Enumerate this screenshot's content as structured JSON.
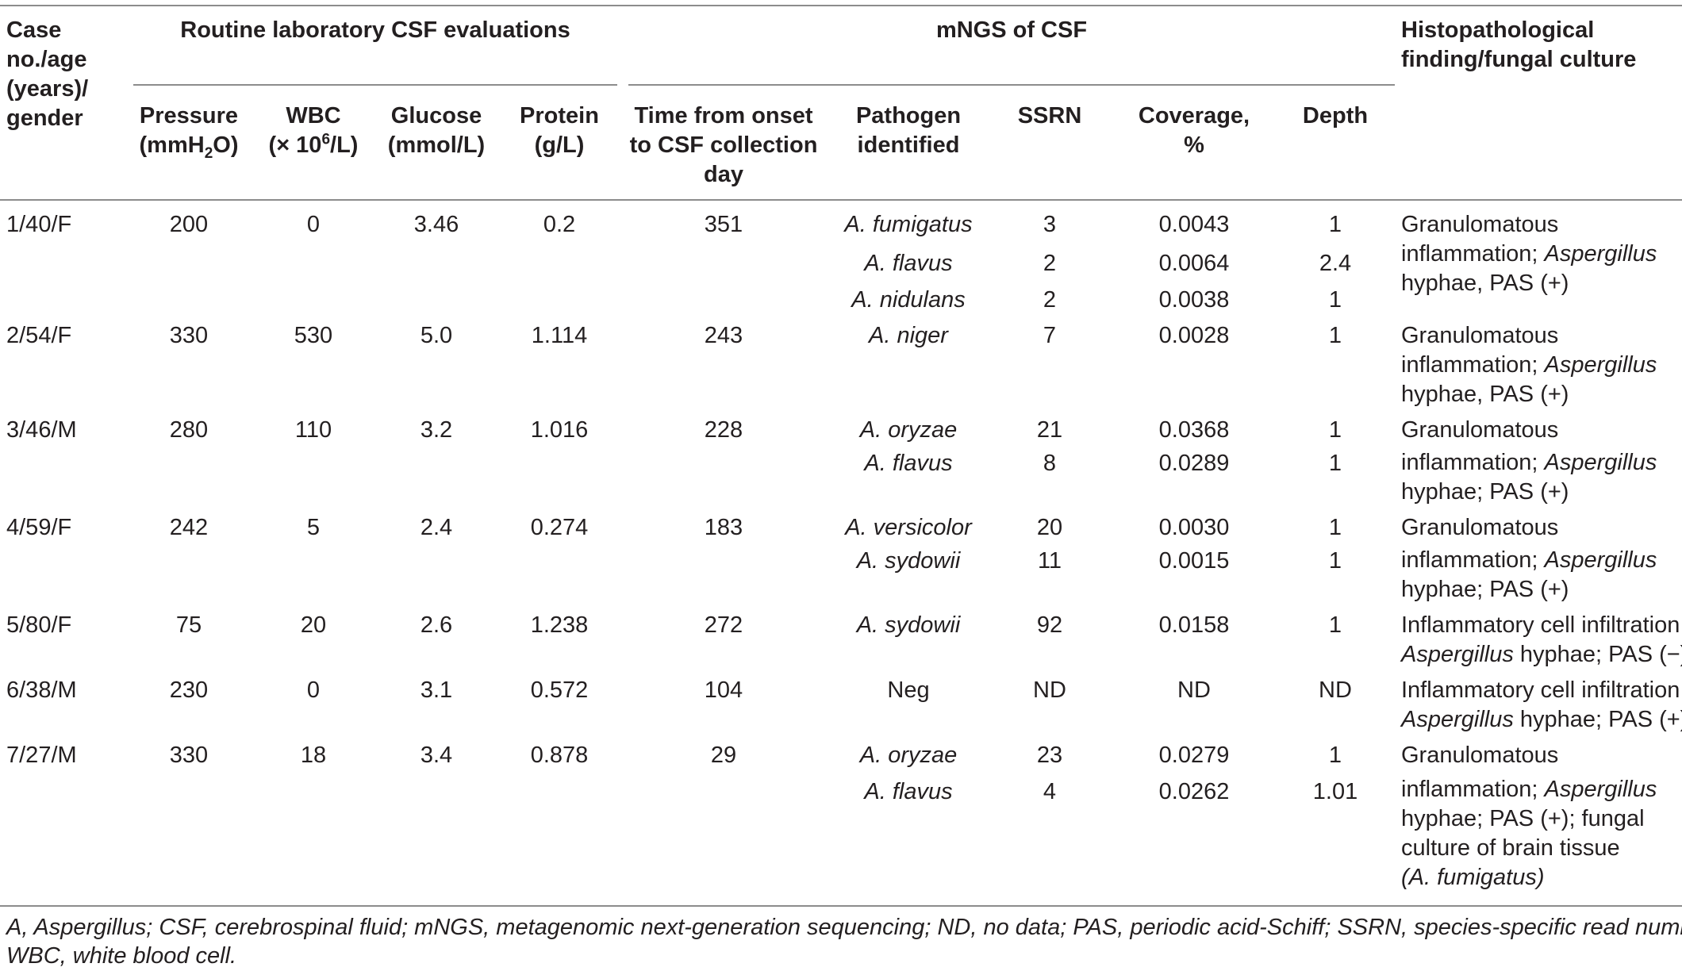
{
  "headers": {
    "case": [
      "Case",
      "no./age",
      "(years)/",
      "gender"
    ],
    "group_routine": "Routine laboratory CSF evaluations",
    "group_mngs": "mNGS of CSF",
    "histo": [
      "Histopathological",
      "finding/fungal culture"
    ],
    "pressure": {
      "l1": "Pressure",
      "l2a": "(mmH",
      "l2sub": "2",
      "l2b": "O)"
    },
    "wbc": {
      "l1": "WBC",
      "l2a": "(× 10",
      "l2sup": "6",
      "l2b": "/L)"
    },
    "glucose": [
      "Glucose",
      "(mmol/L)"
    ],
    "protein": [
      "Protein",
      "(g/L)"
    ],
    "time": [
      "Time from onset",
      "to CSF collection",
      "day"
    ],
    "pathogen": [
      "Pathogen",
      "identified"
    ],
    "ssrn": "SSRN",
    "coverage": [
      "Coverage,",
      "%"
    ],
    "depth": "Depth"
  },
  "rows": [
    {
      "case": "1/40/F",
      "pressure": "200",
      "wbc": "0",
      "glucose": "3.46",
      "protein": "0.2",
      "time": "351",
      "pathogens": [
        {
          "name": "A. fumigatus",
          "ssrn": "3",
          "coverage": "0.0043",
          "depth": "1"
        },
        {
          "name": "A. flavus",
          "ssrn": "2",
          "coverage": "0.0064",
          "depth": "2.4"
        },
        {
          "name": "A. nidulans",
          "ssrn": "2",
          "coverage": "0.0038",
          "depth": "1"
        }
      ],
      "histo": [
        "Granulomatous",
        "inflammation; ",
        "Aspergillus",
        "hyphae, PAS (+)"
      ]
    },
    {
      "case": "2/54/F",
      "pressure": "330",
      "wbc": "530",
      "glucose": "5.0",
      "protein": "1.114",
      "time": "243",
      "pathogens": [
        {
          "name": "A. niger",
          "ssrn": "7",
          "coverage": "0.0028",
          "depth": "1"
        }
      ],
      "histo": [
        "Granulomatous",
        "inflammation; ",
        "Aspergillus",
        "hyphae, PAS (+)"
      ]
    },
    {
      "case": "3/46/M",
      "pressure": "280",
      "wbc": "110",
      "glucose": "3.2",
      "protein": "1.016",
      "time": "228",
      "pathogens": [
        {
          "name": "A. oryzae",
          "ssrn": "21",
          "coverage": "0.0368",
          "depth": "1"
        },
        {
          "name": "A. flavus",
          "ssrn": "8",
          "coverage": "0.0289",
          "depth": "1"
        }
      ],
      "histo": [
        "Granulomatous",
        "inflammation; ",
        "Aspergillus",
        "hyphae; PAS (+)"
      ]
    },
    {
      "case": "4/59/F",
      "pressure": "242",
      "wbc": "5",
      "glucose": "2.4",
      "protein": "0.274",
      "time": "183",
      "pathogens": [
        {
          "name": "A. versicolor",
          "ssrn": "20",
          "coverage": "0.0030",
          "depth": "1"
        },
        {
          "name": "A. sydowii",
          "ssrn": "11",
          "coverage": "0.0015",
          "depth": "1"
        }
      ],
      "histo": [
        "Granulomatous",
        "inflammation; ",
        "Aspergillus",
        "hyphae; PAS (+)"
      ]
    },
    {
      "case": "5/80/F",
      "pressure": "75",
      "wbc": "20",
      "glucose": "2.6",
      "protein": "1.238",
      "time": "272",
      "pathogens": [
        {
          "name": "A. sydowii",
          "ssrn": "92",
          "coverage": "0.0158",
          "depth": "1"
        }
      ],
      "histo": [
        "Inflammatory cell infiltration;",
        "Aspergillus",
        " hyphae; PAS (−)"
      ]
    },
    {
      "case": "6/38/M",
      "pressure": "230",
      "wbc": "0",
      "glucose": "3.1",
      "protein": "0.572",
      "time": "104",
      "pathogens": [
        {
          "name": "Neg",
          "ssrn": "ND",
          "coverage": "ND",
          "depth": "ND"
        }
      ],
      "histo": [
        "Inflammatory cell infiltration;",
        "Aspergillus",
        " hyphae; PAS (+)"
      ]
    },
    {
      "case": "7/27/M",
      "pressure": "330",
      "wbc": "18",
      "glucose": "3.4",
      "protein": "0.878",
      "time": "29",
      "pathogens": [
        {
          "name": "A. oryzae",
          "ssrn": "23",
          "coverage": "0.0279",
          "depth": "1"
        },
        {
          "name": "A. flavus",
          "ssrn": "4",
          "coverage": "0.0262",
          "depth": "1.01"
        }
      ],
      "histo": [
        "Granulomatous",
        "inflammation; ",
        "Aspergillus",
        "hyphae; PAS (+); fungal",
        "culture of brain tissue",
        "(A. fumigatus)"
      ]
    }
  ],
  "footnote": [
    "A, Aspergillus; CSF, cerebrospinal fluid; mNGS, metagenomic next-generation sequencing; ND, no data; PAS, periodic acid-Schiff; SSRN, species-specific read number;",
    "WBC, white blood cell."
  ]
}
